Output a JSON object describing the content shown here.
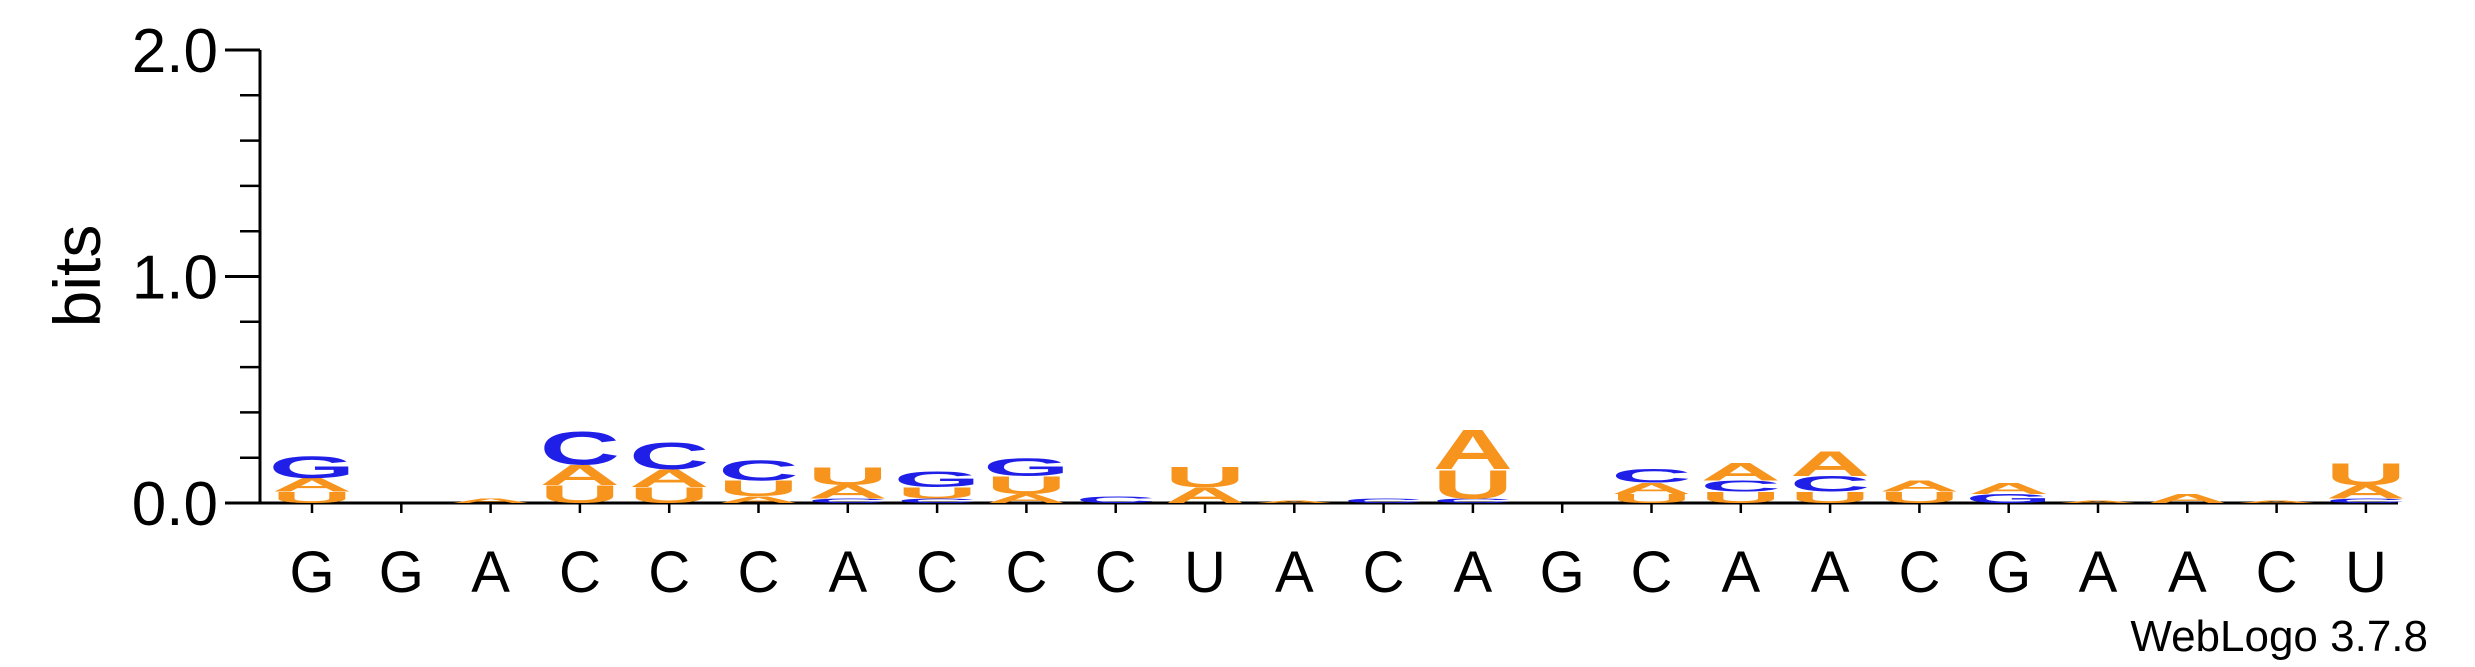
{
  "chart_data": {
    "type": "sequence_logo",
    "ylabel": "bits",
    "ylim": [
      0,
      2.0
    ],
    "yticks": [
      "0.0",
      "1.0",
      "2.0"
    ],
    "credit": "WebLogo 3.7.8",
    "colors": {
      "A": "#f7941d",
      "U": "#f7941d",
      "C": "#1f1fe8",
      "G": "#1f1fe8"
    },
    "positions": [
      {
        "label": "G",
        "stack": [
          {
            "letter": "U",
            "bits": 0.05
          },
          {
            "letter": "A",
            "bits": 0.06
          },
          {
            "letter": "G",
            "bits": 0.1
          }
        ]
      },
      {
        "label": "G",
        "stack": []
      },
      {
        "label": "A",
        "stack": [
          {
            "letter": "A",
            "bits": 0.02
          }
        ]
      },
      {
        "label": "C",
        "stack": [
          {
            "letter": "U",
            "bits": 0.08
          },
          {
            "letter": "A",
            "bits": 0.09
          },
          {
            "letter": "C",
            "bits": 0.15
          }
        ]
      },
      {
        "label": "C",
        "stack": [
          {
            "letter": "U",
            "bits": 0.07
          },
          {
            "letter": "A",
            "bits": 0.08
          },
          {
            "letter": "C",
            "bits": 0.12
          }
        ]
      },
      {
        "label": "C",
        "stack": [
          {
            "letter": "A",
            "bits": 0.03
          },
          {
            "letter": "U",
            "bits": 0.07
          },
          {
            "letter": "C",
            "bits": 0.09
          }
        ]
      },
      {
        "label": "A",
        "stack": [
          {
            "letter": "C",
            "bits": 0.02
          },
          {
            "letter": "A",
            "bits": 0.06
          },
          {
            "letter": "U",
            "bits": 0.08
          }
        ]
      },
      {
        "label": "C",
        "stack": [
          {
            "letter": "C",
            "bits": 0.02
          },
          {
            "letter": "U",
            "bits": 0.05
          },
          {
            "letter": "G",
            "bits": 0.07
          }
        ]
      },
      {
        "label": "C",
        "stack": [
          {
            "letter": "A",
            "bits": 0.04
          },
          {
            "letter": "U",
            "bits": 0.08
          },
          {
            "letter": "G",
            "bits": 0.08
          }
        ]
      },
      {
        "label": "C",
        "stack": [
          {
            "letter": "C",
            "bits": 0.03
          }
        ]
      },
      {
        "label": "U",
        "stack": [
          {
            "letter": "A",
            "bits": 0.07
          },
          {
            "letter": "U",
            "bits": 0.09
          }
        ]
      },
      {
        "label": "A",
        "stack": [
          {
            "letter": "A",
            "bits": 0.01
          }
        ]
      },
      {
        "label": "C",
        "stack": [
          {
            "letter": "C",
            "bits": 0.02
          }
        ]
      },
      {
        "label": "A",
        "stack": [
          {
            "letter": "C",
            "bits": 0.02
          },
          {
            "letter": "U",
            "bits": 0.13
          },
          {
            "letter": "A",
            "bits": 0.18
          }
        ]
      },
      {
        "label": "G",
        "stack": []
      },
      {
        "label": "C",
        "stack": [
          {
            "letter": "U",
            "bits": 0.04
          },
          {
            "letter": "A",
            "bits": 0.05
          },
          {
            "letter": "C",
            "bits": 0.06
          }
        ]
      },
      {
        "label": "A",
        "stack": [
          {
            "letter": "U",
            "bits": 0.05
          },
          {
            "letter": "C",
            "bits": 0.05
          },
          {
            "letter": "A",
            "bits": 0.08
          }
        ]
      },
      {
        "label": "A",
        "stack": [
          {
            "letter": "U",
            "bits": 0.05
          },
          {
            "letter": "C",
            "bits": 0.07
          },
          {
            "letter": "A",
            "bits": 0.11
          }
        ]
      },
      {
        "label": "C",
        "stack": [
          {
            "letter": "U",
            "bits": 0.05
          },
          {
            "letter": "A",
            "bits": 0.05
          }
        ]
      },
      {
        "label": "G",
        "stack": [
          {
            "letter": "G",
            "bits": 0.04
          },
          {
            "letter": "A",
            "bits": 0.05
          }
        ]
      },
      {
        "label": "A",
        "stack": [
          {
            "letter": "A",
            "bits": 0.01
          }
        ]
      },
      {
        "label": "A",
        "stack": [
          {
            "letter": "A",
            "bits": 0.04
          }
        ]
      },
      {
        "label": "C",
        "stack": [
          {
            "letter": "A",
            "bits": 0.01
          }
        ]
      },
      {
        "label": "U",
        "stack": [
          {
            "letter": "C",
            "bits": 0.02
          },
          {
            "letter": "A",
            "bits": 0.06
          },
          {
            "letter": "U",
            "bits": 0.1
          }
        ]
      }
    ]
  }
}
